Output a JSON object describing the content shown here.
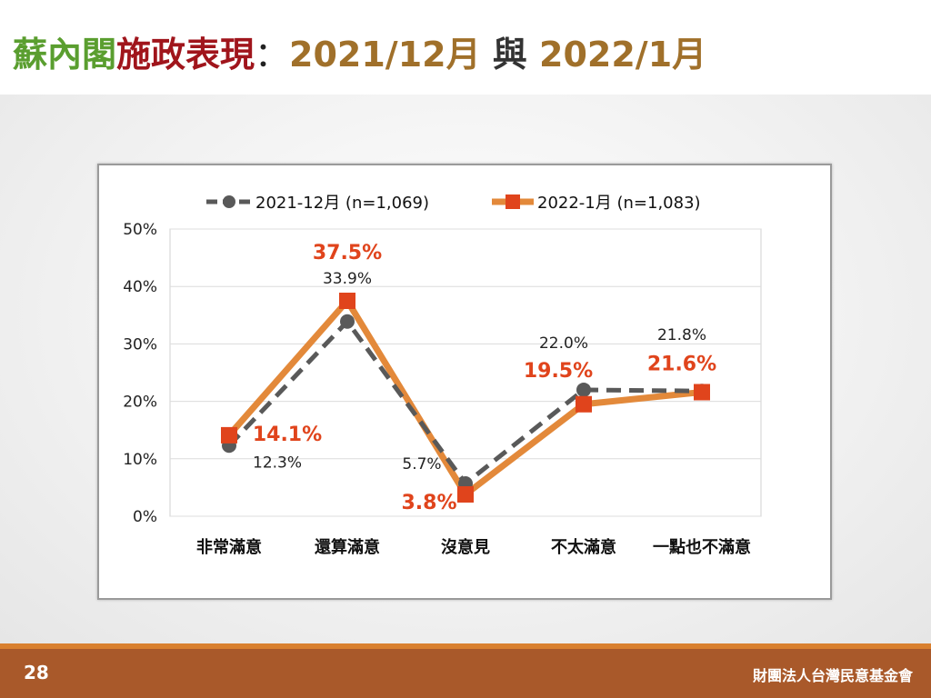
{
  "title": {
    "part1": "蘇內閣",
    "part2": "施政表現",
    "part3": "：",
    "part4": "2021/12月",
    "part5": " 與 ",
    "part6": "2022/1月"
  },
  "footer": {
    "page_number": "28",
    "organization": "財團法人台灣民意基金會"
  },
  "colors": {
    "series1": "#595959",
    "series2": "#e3893a",
    "series2_marker": "#e0441c",
    "series2_label": "#e0441c",
    "title_green": "#5a9e2f",
    "title_red": "#a0151c",
    "title_brown": "#a0702a"
  },
  "chart_data": {
    "type": "line",
    "categories": [
      "非常滿意",
      "還算滿意",
      "沒意見",
      "不太滿意",
      "一點也不滿意"
    ],
    "series": [
      {
        "name": "2021-12月  (n=1,069)",
        "values": [
          12.3,
          33.9,
          5.7,
          22.0,
          21.8
        ],
        "labels": [
          "12.3%",
          "33.9%",
          "5.7%",
          "22.0%",
          "21.8%"
        ]
      },
      {
        "name": "2022-1月  (n=1,083)",
        "values": [
          14.1,
          37.5,
          3.8,
          19.5,
          21.6
        ],
        "labels": [
          "14.1%",
          "37.5%",
          "3.8%",
          "19.5%",
          "21.6%"
        ]
      }
    ],
    "yticks": [
      "0%",
      "10%",
      "20%",
      "30%",
      "40%",
      "50%"
    ],
    "ylim": [
      0,
      50
    ],
    "grid": true,
    "legend": "top"
  }
}
